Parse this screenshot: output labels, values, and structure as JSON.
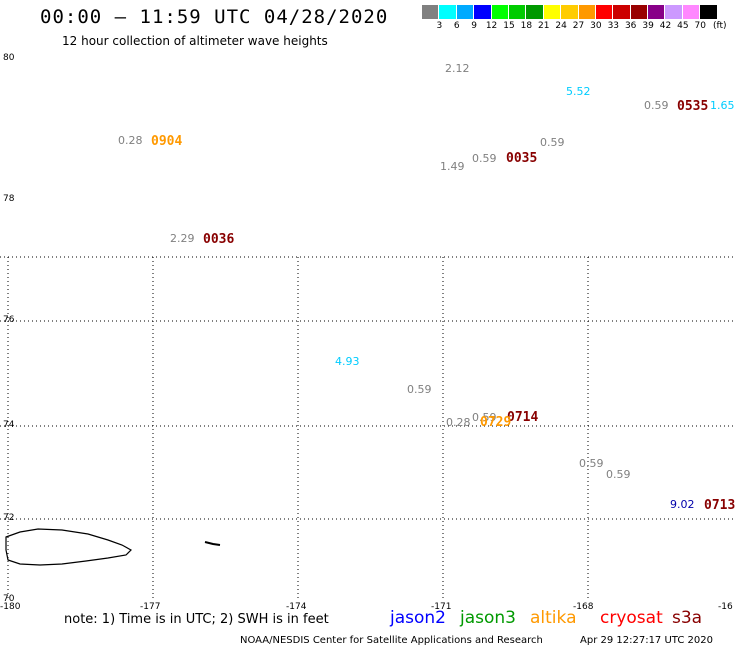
{
  "header": {
    "title": "00:00 – 11:59 UTC 04/28/2020",
    "subtitle": "12 hour collection of altimeter wave heights"
  },
  "legend": {
    "colors": [
      "#808080",
      "#00ffff",
      "#00aaff",
      "#0000ff",
      "#00ff00",
      "#00cc00",
      "#009900",
      "#ffff00",
      "#ffcc00",
      "#ff9900",
      "#ff0000",
      "#cc0000",
      "#990000",
      "#880088",
      "#cc99ff",
      "#ff88ff",
      "#000000"
    ],
    "labels": [
      "3",
      "6",
      "9",
      "12",
      "15",
      "18",
      "21",
      "24",
      "27",
      "30",
      "33",
      "36",
      "39",
      "42",
      "45",
      "70"
    ],
    "unit": "(ft)"
  },
  "axes": {
    "lon_labels": [
      "-180",
      "-177",
      "-174",
      "-171",
      "-168",
      "-16"
    ],
    "lat_labels": [
      "80",
      "78",
      "76",
      "74",
      "72",
      "70"
    ]
  },
  "observations": [
    {
      "text": "2.12",
      "color": "#808080"
    },
    {
      "text": "5.52",
      "color": "#00ccff"
    },
    {
      "text": "0.59",
      "color": "#808080"
    },
    {
      "text": "1.65",
      "color": "#00ccff"
    },
    {
      "text": "0.28",
      "color": "#808080"
    },
    {
      "text": "0.59",
      "color": "#808080"
    },
    {
      "text": "1.49",
      "color": "#808080"
    },
    {
      "text": "0.59",
      "color": "#808080"
    },
    {
      "text": "2.29",
      "color": "#808080"
    },
    {
      "text": "4.93",
      "color": "#00ccff"
    },
    {
      "text": "0.59",
      "color": "#808080"
    },
    {
      "text": "0.28",
      "color": "#808080"
    },
    {
      "text": "0.59",
      "color": "#808080"
    },
    {
      "text": "0.59",
      "color": "#808080"
    },
    {
      "text": "0.59",
      "color": "#808080"
    },
    {
      "text": "9.02",
      "color": "#0000aa"
    }
  ],
  "pass_times": [
    {
      "text": "0535",
      "color": "#880000"
    },
    {
      "text": "0904",
      "color": "#ff9900"
    },
    {
      "text": "0035",
      "color": "#880000"
    },
    {
      "text": "0036",
      "color": "#880000"
    },
    {
      "text": "0714",
      "color": "#880000"
    },
    {
      "text": "0729",
      "color": "#ff9900"
    },
    {
      "text": "0713",
      "color": "#880000"
    }
  ],
  "footer": {
    "note": "note: 1) Time is in UTC; 2) SWH is in feet",
    "satellites": [
      {
        "name": "jason2",
        "color": "#0000ff"
      },
      {
        "name": "jason3",
        "color": "#009900"
      },
      {
        "name": "altika",
        "color": "#ff9900"
      },
      {
        "name": "cryosat",
        "color": "#ff0000"
      },
      {
        "name": "s3a",
        "color": "#880000"
      }
    ],
    "credit": "NOAA/NESDIS Center for Satellite Applications and Research",
    "timestamp": "Apr 29 12:27:17 UTC 2020"
  }
}
